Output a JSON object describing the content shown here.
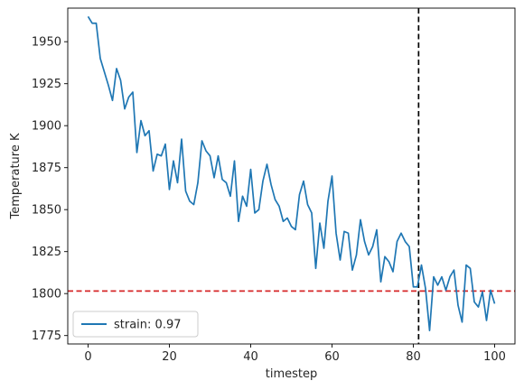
{
  "chart_data": {
    "type": "line",
    "xlabel": "timestep",
    "ylabel": "Temperature K",
    "xlim": [
      -5,
      105
    ],
    "ylim": [
      1770,
      1970
    ],
    "xticks": [
      0,
      20,
      40,
      60,
      80,
      100
    ],
    "yticks": [
      1775,
      1800,
      1825,
      1850,
      1875,
      1900,
      1925,
      1950
    ],
    "grid": false,
    "legend_position": "lower-left",
    "series": [
      {
        "name": "strain: 0.97",
        "color": "#1f77b4",
        "x": [
          0,
          1,
          2,
          3,
          4,
          5,
          6,
          7,
          8,
          9,
          10,
          11,
          12,
          13,
          14,
          15,
          16,
          17,
          18,
          19,
          20,
          21,
          22,
          23,
          24,
          25,
          26,
          27,
          28,
          29,
          30,
          31,
          32,
          33,
          34,
          35,
          36,
          37,
          38,
          39,
          40,
          41,
          42,
          43,
          44,
          45,
          46,
          47,
          48,
          49,
          50,
          51,
          52,
          53,
          54,
          55,
          56,
          57,
          58,
          59,
          60,
          61,
          62,
          63,
          64,
          65,
          66,
          67,
          68,
          69,
          70,
          71,
          72,
          73,
          74,
          75,
          76,
          77,
          78,
          79,
          80,
          81,
          82,
          83,
          84,
          85,
          86,
          87,
          88,
          89,
          90,
          91,
          92,
          93,
          94,
          95,
          96,
          97,
          98,
          99,
          100
        ],
        "y": [
          1965,
          1961,
          1961,
          1940,
          1932,
          1924,
          1915,
          1934,
          1927,
          1910,
          1917,
          1920,
          1884,
          1903,
          1894,
          1897,
          1873,
          1883,
          1882,
          1889,
          1862,
          1879,
          1866,
          1892,
          1861,
          1855,
          1853,
          1866,
          1891,
          1885,
          1882,
          1869,
          1882,
          1868,
          1866,
          1858,
          1879,
          1843,
          1858,
          1852,
          1874,
          1848,
          1850,
          1867,
          1877,
          1865,
          1856,
          1852,
          1843,
          1845,
          1840,
          1838,
          1859,
          1867,
          1853,
          1848,
          1815,
          1842,
          1827,
          1855,
          1870,
          1836,
          1820,
          1837,
          1836,
          1814,
          1823,
          1844,
          1831,
          1823,
          1828,
          1838,
          1807,
          1822,
          1819,
          1813,
          1831,
          1836,
          1831,
          1828,
          1804,
          1804,
          1817,
          1803,
          1778,
          1810,
          1805,
          1810,
          1802,
          1810,
          1814,
          1793,
          1783,
          1817,
          1815,
          1795,
          1792,
          1801,
          1784,
          1802,
          1794
        ]
      }
    ],
    "reference_lines": [
      {
        "orientation": "horizontal",
        "value": 1801.5,
        "color": "#d62728",
        "style": "dashed"
      },
      {
        "orientation": "vertical",
        "value": 81.3,
        "color": "#000000",
        "style": "dashed"
      }
    ]
  }
}
